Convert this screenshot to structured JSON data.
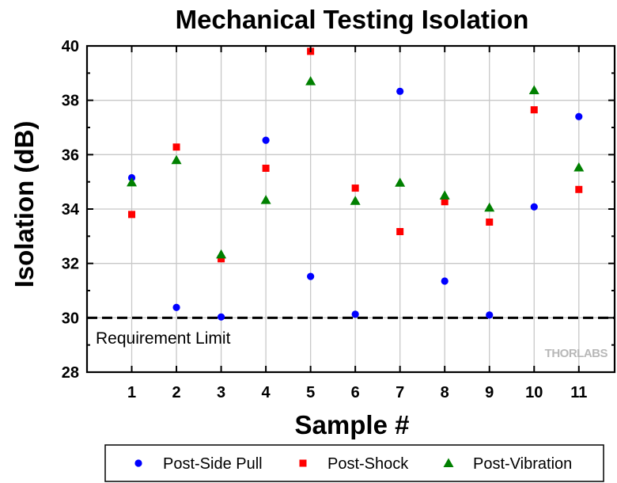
{
  "chart_data": {
    "type": "scatter",
    "title": "Mechanical Testing Isolation",
    "xlabel": "Sample #",
    "ylabel": "Isolation (dB)",
    "x": [
      1,
      2,
      3,
      4,
      5,
      6,
      7,
      8,
      9,
      10,
      11
    ],
    "xlim": [
      0,
      11.8
    ],
    "ylim": [
      28,
      40
    ],
    "xticks": [
      1,
      2,
      3,
      4,
      5,
      6,
      7,
      8,
      9,
      10,
      11
    ],
    "yticks": [
      28,
      30,
      32,
      34,
      36,
      38,
      40
    ],
    "grid": true,
    "legend_position": "bottom",
    "series": [
      {
        "name": "Post-Side Pull",
        "marker": "circle",
        "color": "#0000ff",
        "values": [
          35.15,
          30.38,
          30.03,
          36.53,
          31.52,
          30.13,
          38.33,
          31.35,
          30.1,
          34.08,
          37.4
        ]
      },
      {
        "name": "Post-Shock",
        "marker": "square",
        "color": "#ff0000",
        "values": [
          33.8,
          36.28,
          32.17,
          35.5,
          39.8,
          34.77,
          33.17,
          34.27,
          33.52,
          37.65,
          34.72
        ]
      },
      {
        "name": "Post-Vibration",
        "marker": "triangle",
        "color": "#008000",
        "values": [
          34.98,
          35.8,
          32.33,
          34.33,
          38.7,
          34.3,
          34.97,
          34.5,
          34.05,
          38.37,
          35.53
        ]
      }
    ],
    "reference_line": {
      "y": 30,
      "label": "Requirement Limit",
      "style": "dashed",
      "color": "#000000"
    },
    "watermark": "THORLABS"
  }
}
